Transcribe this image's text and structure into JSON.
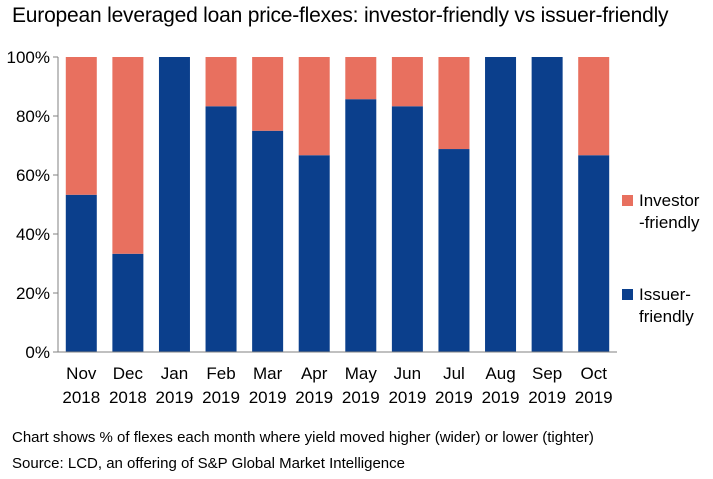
{
  "title": "European leveraged loan price-flexes: investor-friendly vs issuer-friendly",
  "notes": {
    "line1": "Chart shows % of flexes each month where yield moved higher (wider) or lower (tighter)",
    "line2": "Source: LCD, an offering of S&P Global Market Intelligence"
  },
  "legend": {
    "investor": [
      "Investor",
      "-friendly"
    ],
    "issuer": [
      "Issuer-",
      "friendly"
    ]
  },
  "colors": {
    "investor": "#E8705F",
    "issuer": "#0B3F8C",
    "axis": "#808080"
  },
  "chart_data": {
    "type": "bar",
    "stacked": true,
    "percent": true,
    "categories": [
      [
        "Nov",
        "2018"
      ],
      [
        "Dec",
        "2018"
      ],
      [
        "Jan",
        "2019"
      ],
      [
        "Feb",
        "2019"
      ],
      [
        "Mar",
        "2019"
      ],
      [
        "Apr",
        "2019"
      ],
      [
        "May",
        "2019"
      ],
      [
        "Jun",
        "2019"
      ],
      [
        "Jul",
        "2019"
      ],
      [
        "Aug",
        "2019"
      ],
      [
        "Sep",
        "2019"
      ],
      [
        "Oct",
        "2019"
      ]
    ],
    "series": [
      {
        "name": "Issuer-friendly",
        "values": [
          53.3,
          33.3,
          100,
          83.3,
          75,
          66.7,
          85.7,
          83.3,
          68.8,
          100,
          100,
          66.7
        ]
      },
      {
        "name": "Investor-friendly",
        "values": [
          46.7,
          66.7,
          0,
          16.7,
          25,
          33.3,
          14.3,
          16.7,
          31.2,
          0,
          0,
          33.3
        ]
      }
    ],
    "yticks": [
      "0%",
      "20%",
      "40%",
      "60%",
      "80%",
      "100%"
    ],
    "ylim": [
      0,
      100
    ],
    "grid": false,
    "legend_position": "right"
  }
}
